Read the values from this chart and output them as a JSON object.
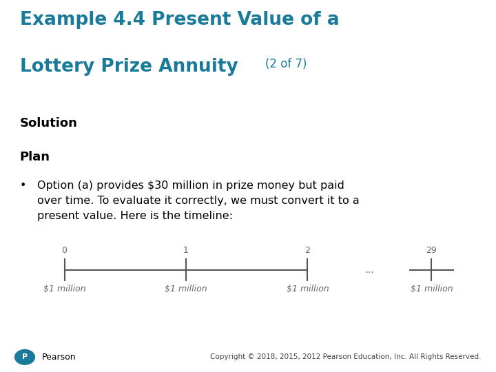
{
  "title_line1": "Example 4.4 Present Value of a",
  "title_line2": "Lottery Prize Annuity",
  "title_small": "(2 of 7)",
  "title_color": "#1a7a9a",
  "section1": "Solution",
  "section2": "Plan",
  "bullet_text": "Option (a) provides $30 million in prize money but paid\nover time. To evaluate it correctly, we must convert it to a\npresent value. Here is the timeline:",
  "timeline_labels_top": [
    "0",
    "1",
    "2",
    "29"
  ],
  "timeline_labels_bot": [
    "$1 million",
    "$1 million",
    "$1 million",
    "$1 million"
  ],
  "dots_text": "...",
  "footer_text": "Copyright © 2018, 2015, 2012 Pearson Education, Inc. All Rights Reserved.",
  "pearson_text": "Pearson",
  "background_color": "#ffffff",
  "text_color": "#000000",
  "line_color": "#555555",
  "label_color": "#666666",
  "title_fontsize": 19,
  "title_small_fontsize": 12,
  "section_fontsize": 13,
  "body_fontsize": 11.5,
  "timeline_fontsize": 9,
  "footer_fontsize": 7.5
}
